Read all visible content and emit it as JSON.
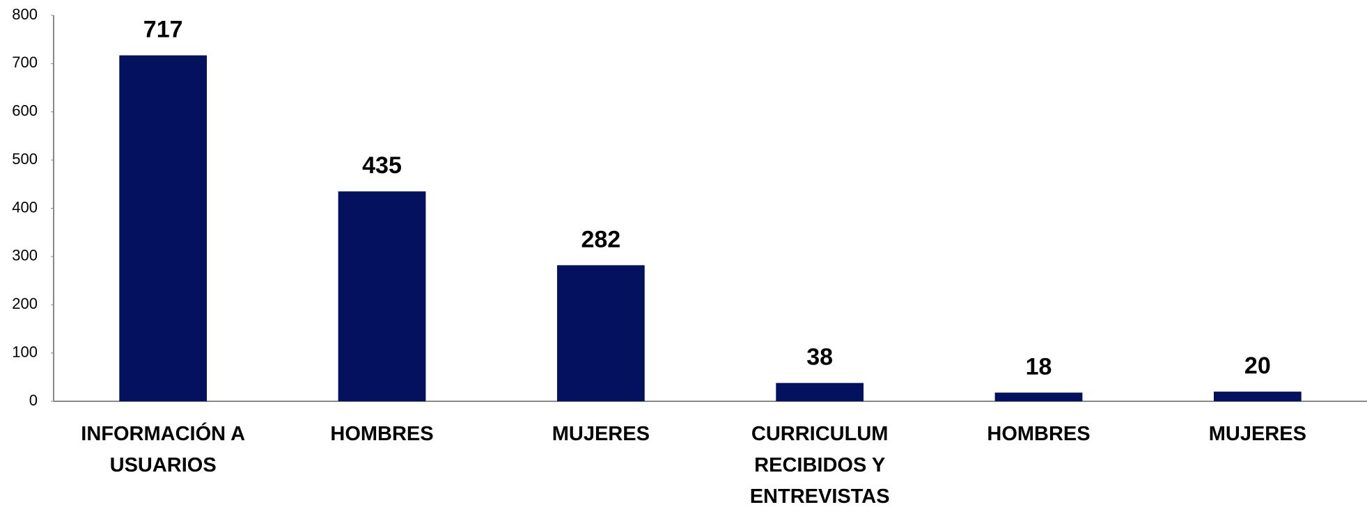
{
  "chart_data": {
    "type": "bar",
    "categories": [
      "INFORMACIÓN A USUARIOS",
      "HOMBRES",
      "MUJERES",
      "CURRICULUM RECIBIDOS Y ENTREVISTAS",
      "HOMBRES",
      "MUJERES"
    ],
    "values": [
      717,
      435,
      282,
      38,
      18,
      20
    ],
    "color": "#03115e",
    "ylim": [
      0,
      800
    ],
    "yticks": [
      0,
      100,
      200,
      300,
      400,
      500,
      600,
      700,
      800
    ],
    "grid": false
  }
}
